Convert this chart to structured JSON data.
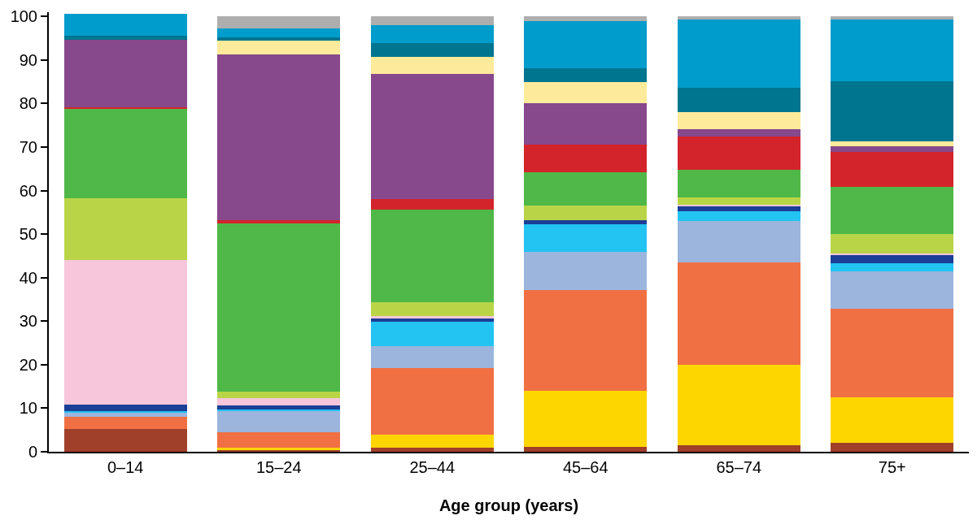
{
  "chart_data": {
    "type": "bar",
    "stacked": true,
    "xlabel": "Age group (years)",
    "categories": [
      "0–14",
      "15–24",
      "25–44",
      "45–64",
      "65–74",
      "75+"
    ],
    "ylim": [
      0,
      101
    ],
    "yticks": [
      0,
      10,
      20,
      30,
      40,
      50,
      60,
      70,
      80,
      90,
      100
    ],
    "series": [
      {
        "color": "#a0402a",
        "values": [
          5.3,
          0.3,
          1.0,
          1.2,
          1.5,
          2.0
        ]
      },
      {
        "color": "#fdd600",
        "values": [
          0,
          0.7,
          2.9,
          12.8,
          18.5,
          10.5
        ]
      },
      {
        "color": "#f07043",
        "values": [
          2.7,
          3.5,
          15.3,
          23.2,
          23.5,
          20.3
        ]
      },
      {
        "color": "#9bb5dd",
        "values": [
          0.9,
          4.9,
          5.0,
          8.7,
          9.5,
          8.7
        ]
      },
      {
        "color": "#23c3f2",
        "values": [
          0.5,
          0.3,
          5.6,
          6.3,
          2.3,
          1.9
        ]
      },
      {
        "color": "#1b3e96",
        "values": [
          1.5,
          1.0,
          0.8,
          1.0,
          1.0,
          1.9
        ]
      },
      {
        "color": "#f7c6da",
        "values": [
          33.1,
          1.6,
          0.5,
          0,
          0.4,
          0.3
        ]
      },
      {
        "color": "#b9d547",
        "values": [
          14.3,
          1.5,
          3.2,
          3.3,
          1.8,
          4.5
        ]
      },
      {
        "color": "#50b848",
        "values": [
          20.5,
          38.7,
          21.3,
          7.7,
          6.3,
          10.8
        ]
      },
      {
        "color": "#d3242b",
        "values": [
          0.3,
          0.7,
          2.5,
          6.4,
          7.6,
          7.9
        ]
      },
      {
        "color": "#87488c",
        "values": [
          15.6,
          38.0,
          28.7,
          9.4,
          1.8,
          1.4
        ]
      },
      {
        "color": "#feea9b",
        "values": [
          0,
          3.3,
          3.9,
          4.9,
          3.9,
          1.2
        ]
      },
      {
        "color": "#00758f",
        "values": [
          0.8,
          0.8,
          3.3,
          3.3,
          5.6,
          13.7
        ]
      },
      {
        "color": "#009ccb",
        "values": [
          5.2,
          2.0,
          4.1,
          10.8,
          15.7,
          14.3
        ]
      },
      {
        "color": "#aeaeae",
        "values": [
          0,
          2.7,
          1.9,
          1.0,
          0.6,
          0.6
        ]
      }
    ]
  }
}
